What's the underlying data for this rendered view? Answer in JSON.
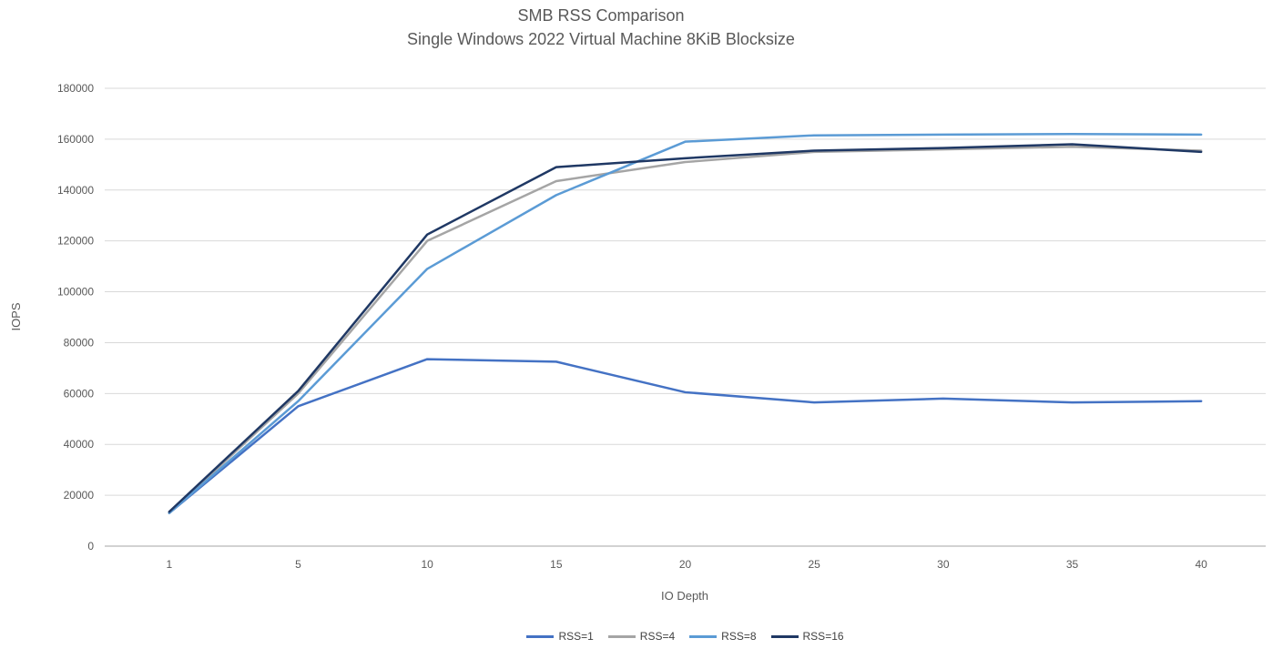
{
  "title_line1": "SMB RSS Comparison",
  "title_line2": "Single Windows 2022 Virtual Machine 8KiB Blocksize",
  "chart_data": {
    "type": "line",
    "x": [
      1,
      5,
      10,
      15,
      20,
      25,
      30,
      35,
      40
    ],
    "x_axis_type": "categorical",
    "xlabel": "IO Depth",
    "ylabel": "IOPS",
    "ylim": [
      0,
      180000
    ],
    "ytick_step": 20000,
    "grid": true,
    "legend_position": "bottom",
    "series": [
      {
        "name": "RSS=1",
        "color": "#4472C4",
        "values": [
          13000,
          55000,
          73500,
          72500,
          60500,
          56500,
          58000,
          56500,
          57000
        ]
      },
      {
        "name": "RSS=4",
        "color": "#A5A5A5",
        "values": [
          13000,
          60000,
          120000,
          143500,
          151000,
          155000,
          156000,
          157000,
          155500
        ]
      },
      {
        "name": "RSS=8",
        "color": "#5B9BD5",
        "values": [
          13000,
          57000,
          109000,
          138000,
          159000,
          161500,
          161800,
          162000,
          161800
        ]
      },
      {
        "name": "RSS=16",
        "color": "#1F3864",
        "values": [
          13500,
          61000,
          122500,
          149000,
          152500,
          155500,
          156500,
          158000,
          155000
        ]
      }
    ]
  }
}
